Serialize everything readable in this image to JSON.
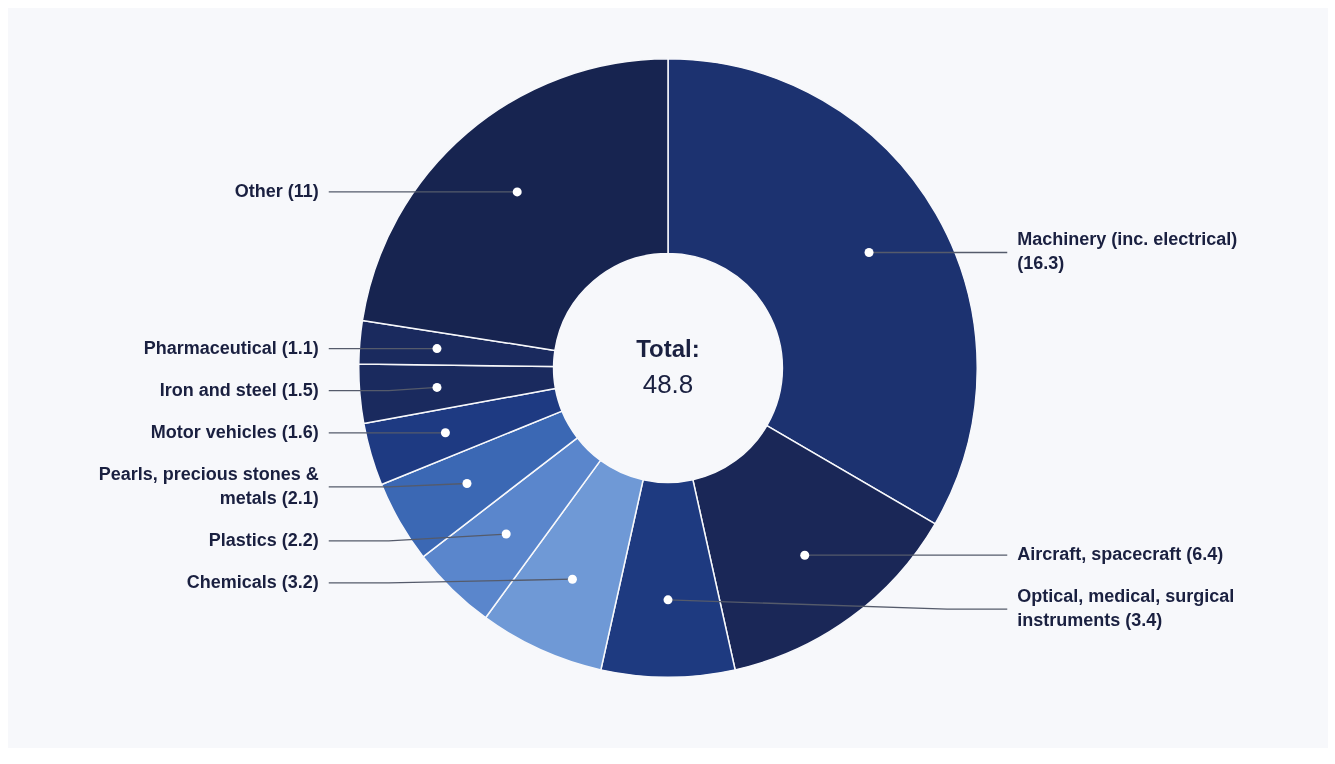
{
  "chart_data": {
    "type": "donut",
    "categories": [
      "Machinery (inc. electrical)",
      "Aircraft, spacecraft",
      "Optical, medical, surgical instruments",
      "Chemicals",
      "Plastics",
      "Pearls, precious stones & metals",
      "Motor vehicles",
      "Iron and steel",
      "Pharmaceutical",
      "Other"
    ],
    "values": [
      16.3,
      6.4,
      3.4,
      3.2,
      2.2,
      2.1,
      1.6,
      1.5,
      1.1,
      11
    ],
    "colors": [
      "#1c3270",
      "#1a2757",
      "#1e3a80",
      "#6f99d6",
      "#5a86cc",
      "#3b68b4",
      "#1e3a82",
      "#1a2a5e",
      "#1a2a5e",
      "#172450"
    ],
    "value_labels": [
      "(16.3)",
      "(6.4)",
      "(3.4)",
      "(3.2)",
      "(2.2)",
      "(2.1)",
      "(1.6)",
      "(1.5)",
      "(1.1)",
      "(11)"
    ],
    "annotations": [
      "Total:",
      "48.8"
    ]
  }
}
